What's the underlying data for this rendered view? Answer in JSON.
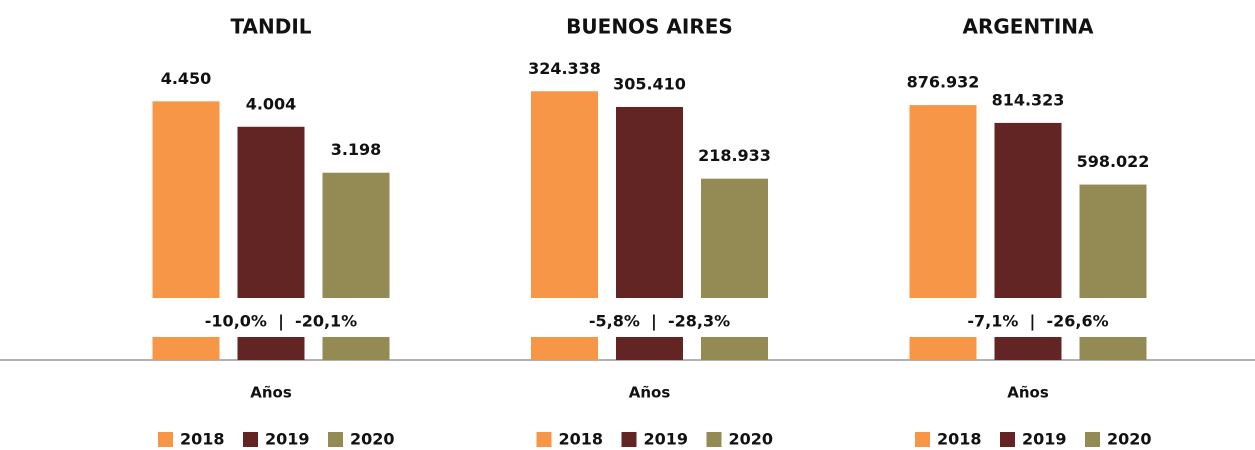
{
  "chart_data": [
    {
      "type": "bar",
      "title": "TANDIL",
      "xlabel": "Años",
      "categories": [
        "2018",
        "2019",
        "2020"
      ],
      "values": [
        4450,
        4004,
        3198
      ],
      "value_labels": [
        "4.450",
        "4.004",
        "3.198"
      ],
      "colors": [
        "#f79646",
        "#632523",
        "#948a54"
      ],
      "ylim": [
        1000,
        5000
      ],
      "annotation": "-10,0%  |  -20,1%"
    },
    {
      "type": "bar",
      "title": "BUENOS AIRES",
      "xlabel": "Años",
      "categories": [
        "2018",
        "2019",
        "2020"
      ],
      "values": [
        324338,
        305410,
        218933
      ],
      "value_labels": [
        "324.338",
        "305.410",
        "218.933"
      ],
      "colors": [
        "#f79646",
        "#632523",
        "#948a54"
      ],
      "ylim": [
        75000,
        350000
      ],
      "annotation": "-5,8%  |  -28,3%"
    },
    {
      "type": "bar",
      "title": "ARGENTINA",
      "xlabel": "Años",
      "categories": [
        "2018",
        "2019",
        "2020"
      ],
      "values": [
        876932,
        814323,
        598022
      ],
      "value_labels": [
        "876.932",
        "814.323",
        "598.022"
      ],
      "colors": [
        "#f79646",
        "#632523",
        "#948a54"
      ],
      "ylim": [
        200000,
        1000000
      ],
      "annotation": "-7,1%  |  -26,6%"
    }
  ]
}
